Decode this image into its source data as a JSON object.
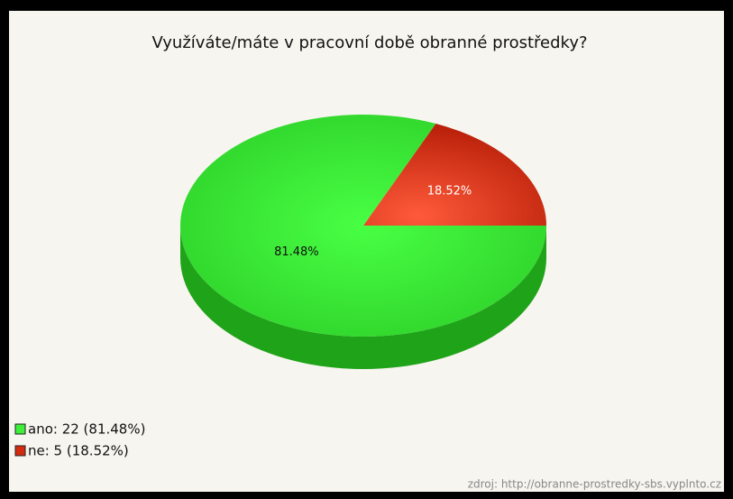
{
  "chart_data": {
    "type": "pie",
    "title": "Využíváte/máte v pracovní době obranné prostředky?",
    "categories": [
      "ano",
      "ne"
    ],
    "values": [
      81.48,
      18.52
    ],
    "value_labels": [
      "81.48%",
      "18.52%"
    ],
    "colors": [
      "#3ef03a",
      "#d42a10"
    ],
    "legend": [
      "ano: 22 (81.48%)",
      "ne: 5 (18.52%)"
    ],
    "source": "zdroj: http://obranne-prostredky-sbs.vyplnto.cz"
  }
}
